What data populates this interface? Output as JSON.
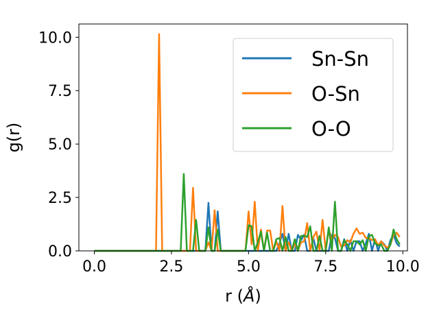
{
  "chart_data": {
    "type": "line",
    "title": "",
    "xlabel": "r (",
    "xlabel_unit": "Å",
    "xlabel_close": ")",
    "ylabel": "g(r)",
    "xlim": [
      -0.5,
      10.15
    ],
    "ylim": [
      0,
      10.62
    ],
    "xticks": [
      0.0,
      2.5,
      5.0,
      7.5,
      10.0
    ],
    "xtick_labels": [
      "0.0",
      "2.5",
      "5.0",
      "7.5",
      "10.0"
    ],
    "yticks": [
      0.0,
      2.5,
      5.0,
      7.5,
      10.0
    ],
    "ytick_labels": [
      "0.0",
      "2.5",
      "5.0",
      "7.5",
      "10.0"
    ],
    "grid": false,
    "legend_position": "top-right",
    "series": [
      {
        "name": "Sn-Sn",
        "color": "#1f77b4",
        "points": [
          [
            0.0,
            0
          ],
          [
            3.5,
            0
          ],
          [
            3.6,
            0
          ],
          [
            3.7,
            2.25
          ],
          [
            3.8,
            0
          ],
          [
            3.9,
            0
          ],
          [
            4.0,
            1.85
          ],
          [
            4.1,
            0
          ],
          [
            4.2,
            0
          ],
          [
            5.9,
            0
          ],
          [
            6.0,
            0.35
          ],
          [
            6.1,
            0.8
          ],
          [
            6.2,
            0
          ],
          [
            6.3,
            0.8
          ],
          [
            6.4,
            0
          ],
          [
            6.5,
            0
          ],
          [
            6.6,
            0.75
          ],
          [
            6.7,
            0.5
          ],
          [
            6.8,
            0.75
          ],
          [
            6.9,
            0
          ],
          [
            7.0,
            0
          ],
          [
            7.1,
            0.6
          ],
          [
            7.2,
            0
          ],
          [
            7.5,
            0
          ],
          [
            7.6,
            0
          ],
          [
            7.7,
            0.75
          ],
          [
            7.8,
            0.6
          ],
          [
            7.9,
            0
          ],
          [
            8.0,
            0
          ],
          [
            8.1,
            0.55
          ],
          [
            8.2,
            0
          ],
          [
            8.3,
            0.5
          ],
          [
            8.4,
            0
          ],
          [
            8.5,
            0.45
          ],
          [
            8.6,
            0.45
          ],
          [
            8.7,
            0
          ],
          [
            8.8,
            0.35
          ],
          [
            8.9,
            0.8
          ],
          [
            9.0,
            0
          ],
          [
            9.1,
            0.55
          ],
          [
            9.2,
            0
          ],
          [
            9.3,
            0.45
          ],
          [
            9.4,
            0.3
          ],
          [
            9.5,
            0
          ],
          [
            9.6,
            0.5
          ],
          [
            9.7,
            0.75
          ],
          [
            9.8,
            0.35
          ],
          [
            9.9,
            0.2
          ]
        ]
      },
      {
        "name": "O-Sn",
        "color": "#ff7f0e",
        "points": [
          [
            0.0,
            0
          ],
          [
            2.0,
            0
          ],
          [
            2.1,
            10.15
          ],
          [
            2.2,
            0
          ],
          [
            3.1,
            0
          ],
          [
            3.2,
            2.95
          ],
          [
            3.3,
            0
          ],
          [
            3.6,
            0
          ],
          [
            3.7,
            0.4
          ],
          [
            3.8,
            0
          ],
          [
            3.9,
            1.9
          ],
          [
            4.0,
            0
          ],
          [
            4.9,
            0
          ],
          [
            5.0,
            1.85
          ],
          [
            5.1,
            0.3
          ],
          [
            5.2,
            2.3
          ],
          [
            5.3,
            0
          ],
          [
            5.4,
            1.0
          ],
          [
            5.5,
            0
          ],
          [
            5.6,
            0.95
          ],
          [
            5.7,
            0.95
          ],
          [
            5.8,
            0
          ],
          [
            5.9,
            0.45
          ],
          [
            6.0,
            0
          ],
          [
            6.1,
            2.1
          ],
          [
            6.2,
            0
          ],
          [
            6.3,
            0.4
          ],
          [
            6.4,
            0
          ],
          [
            6.5,
            0.35
          ],
          [
            6.6,
            0
          ],
          [
            6.7,
            0.4
          ],
          [
            6.8,
            0.45
          ],
          [
            6.9,
            1.3
          ],
          [
            7.0,
            0
          ],
          [
            7.1,
            0.65
          ],
          [
            7.2,
            0.9
          ],
          [
            7.3,
            0
          ],
          [
            7.4,
            1.45
          ],
          [
            7.5,
            0
          ],
          [
            7.6,
            1.0
          ],
          [
            7.7,
            0.5
          ],
          [
            7.8,
            0.75
          ],
          [
            7.9,
            0.65
          ],
          [
            8.0,
            0.2
          ],
          [
            8.1,
            0.25
          ],
          [
            8.2,
            0.5
          ],
          [
            8.3,
            0.4
          ],
          [
            8.4,
            0.8
          ],
          [
            8.5,
            1.05
          ],
          [
            8.6,
            0.8
          ],
          [
            8.7,
            0.85
          ],
          [
            8.8,
            0.6
          ],
          [
            8.9,
            0.6
          ],
          [
            9.0,
            0.5
          ],
          [
            9.1,
            0.55
          ],
          [
            9.2,
            0.25
          ],
          [
            9.3,
            0.45
          ],
          [
            9.4,
            0.25
          ],
          [
            9.5,
            0.15
          ],
          [
            9.6,
            0.3
          ],
          [
            9.7,
            0.75
          ],
          [
            9.8,
            0.85
          ],
          [
            9.9,
            0.65
          ]
        ]
      },
      {
        "name": "O-O",
        "color": "#2ca02c",
        "points": [
          [
            0.0,
            0
          ],
          [
            2.8,
            0
          ],
          [
            2.9,
            3.6
          ],
          [
            3.0,
            0
          ],
          [
            3.2,
            0
          ],
          [
            3.3,
            1.45
          ],
          [
            3.4,
            0
          ],
          [
            3.6,
            0
          ],
          [
            3.7,
            1.1
          ],
          [
            3.8,
            0
          ],
          [
            3.9,
            0
          ],
          [
            4.0,
            1.0
          ],
          [
            4.1,
            0
          ],
          [
            4.9,
            0
          ],
          [
            5.0,
            1.2
          ],
          [
            5.1,
            1.15
          ],
          [
            5.2,
            0
          ],
          [
            5.3,
            0.4
          ],
          [
            5.4,
            0.9
          ],
          [
            5.5,
            0
          ],
          [
            5.6,
            0.85
          ],
          [
            5.7,
            0
          ],
          [
            5.8,
            0
          ],
          [
            5.9,
            0.55
          ],
          [
            6.0,
            0.6
          ],
          [
            6.1,
            0
          ],
          [
            6.2,
            0.65
          ],
          [
            6.3,
            0
          ],
          [
            6.4,
            0
          ],
          [
            6.5,
            0.55
          ],
          [
            6.6,
            0
          ],
          [
            6.7,
            0.7
          ],
          [
            6.8,
            0.7
          ],
          [
            6.9,
            0.65
          ],
          [
            7.0,
            1.15
          ],
          [
            7.1,
            0
          ],
          [
            7.2,
            0
          ],
          [
            7.3,
            0.7
          ],
          [
            7.4,
            0
          ],
          [
            7.5,
            0
          ],
          [
            7.6,
            1.1
          ],
          [
            7.7,
            0
          ],
          [
            7.8,
            2.3
          ],
          [
            7.9,
            0
          ],
          [
            8.0,
            0
          ],
          [
            8.1,
            0.5
          ],
          [
            8.2,
            0.3
          ],
          [
            8.3,
            0
          ],
          [
            8.4,
            0.45
          ],
          [
            8.5,
            0.45
          ],
          [
            8.6,
            0.3
          ],
          [
            8.7,
            0.5
          ],
          [
            8.8,
            0
          ],
          [
            8.9,
            0.7
          ],
          [
            9.0,
            0.75
          ],
          [
            9.1,
            0.35
          ],
          [
            9.2,
            0.25
          ],
          [
            9.3,
            0.3
          ],
          [
            9.4,
            0
          ],
          [
            9.5,
            0
          ],
          [
            9.6,
            0.3
          ],
          [
            9.7,
            1.0
          ],
          [
            9.8,
            0.55
          ],
          [
            9.9,
            0.3
          ]
        ]
      }
    ]
  }
}
